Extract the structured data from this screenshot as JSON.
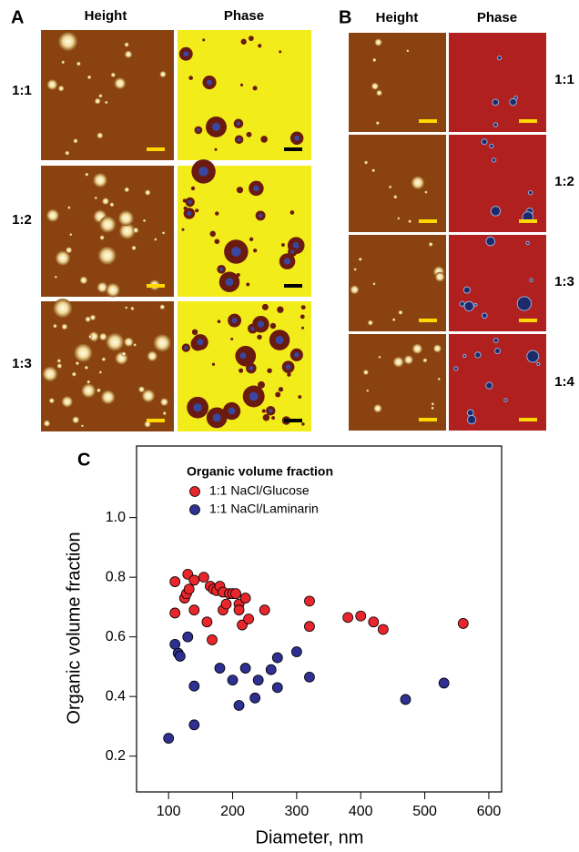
{
  "figure": {
    "panel_a": {
      "label": "A",
      "columns": [
        "Height",
        "Phase"
      ],
      "rows": [
        "1:1",
        "1:2",
        "1:3"
      ]
    },
    "panel_b": {
      "label": "B",
      "columns": [
        "Height",
        "Phase"
      ],
      "rows": [
        "1:1",
        "1:2",
        "1:3",
        "1:4"
      ]
    },
    "panel_c": {
      "label": "C"
    }
  },
  "chart_data": {
    "type": "scatter",
    "legend_title": "Organic volume fraction",
    "x_label": "Diameter, nm",
    "y_label": "Organic volume fraction",
    "xlim": [
      50,
      620
    ],
    "xticks": [
      100,
      200,
      300,
      400,
      500,
      600
    ],
    "ylim": [
      0.08,
      1.24
    ],
    "yticks": [
      0.2,
      0.4,
      0.6,
      0.8,
      {
        "value": 1,
        "label": "1.0"
      }
    ],
    "legend": "upper left",
    "series": [
      {
        "name": "1:1 NaCl/Glucose",
        "color": "#e8262b",
        "x": [
          110,
          110,
          125,
          128,
          130,
          132,
          140,
          140,
          155,
          160,
          165,
          168,
          170,
          175,
          180,
          185,
          185,
          190,
          195,
          200,
          205,
          210,
          210,
          215,
          220,
          225,
          250,
          320,
          320,
          380,
          400,
          420,
          435,
          560
        ],
        "values": [
          0.68,
          0.785,
          0.73,
          0.745,
          0.81,
          0.76,
          0.79,
          0.69,
          0.8,
          0.65,
          0.77,
          0.59,
          0.76,
          0.755,
          0.77,
          0.75,
          0.69,
          0.71,
          0.745,
          0.745,
          0.745,
          0.71,
          0.69,
          0.64,
          0.73,
          0.66,
          0.69,
          0.72,
          0.635,
          0.665,
          0.67,
          0.65,
          0.625,
          0.645
        ]
      },
      {
        "name": "1:1 NaCl/Laminarin",
        "color": "#2e3192",
        "x": [
          100,
          110,
          115,
          118,
          130,
          140,
          140,
          180,
          200,
          210,
          220,
          235,
          240,
          260,
          270,
          270,
          300,
          320,
          470,
          530
        ],
        "values": [
          0.26,
          0.575,
          0.545,
          0.535,
          0.6,
          0.435,
          0.305,
          0.495,
          0.455,
          0.37,
          0.495,
          0.395,
          0.455,
          0.49,
          0.53,
          0.43,
          0.55,
          0.465,
          0.39,
          0.445
        ]
      }
    ]
  }
}
